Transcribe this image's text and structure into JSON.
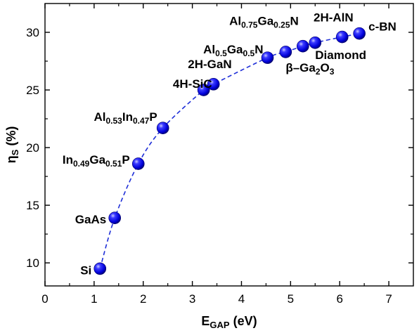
{
  "chart_data": {
    "type": "scatter",
    "xlabel": {
      "main": "E",
      "sub": "GAP",
      "tail": " (eV)"
    },
    "ylabel": {
      "main": "η",
      "sub": "S",
      "tail": " (%)"
    },
    "xlim": [
      0,
      7.5
    ],
    "ylim": [
      8,
      32.5
    ],
    "xticks": [
      0,
      1,
      2,
      3,
      4,
      5,
      6,
      7
    ],
    "yticks": [
      10,
      15,
      20,
      25,
      30
    ],
    "marker_color": "#1a1aff",
    "fit_line_color": "#1f2fd8",
    "fit_line_style": "dashed",
    "points": [
      {
        "x": 1.12,
        "y": 9.5,
        "label": [
          {
            "t": "Si"
          }
        ]
      },
      {
        "x": 1.42,
        "y": 13.9,
        "label": [
          {
            "t": "GaAs"
          }
        ]
      },
      {
        "x": 1.9,
        "y": 18.6,
        "label": [
          {
            "t": "In"
          },
          {
            "t": "0.49",
            "sub": true
          },
          {
            "t": "Ga"
          },
          {
            "t": "0.51",
            "sub": true
          },
          {
            "t": "P"
          }
        ]
      },
      {
        "x": 2.4,
        "y": 21.7,
        "label": [
          {
            "t": "Al"
          },
          {
            "t": "0.53",
            "sub": true
          },
          {
            "t": "In"
          },
          {
            "t": "0.47",
            "sub": true
          },
          {
            "t": "P"
          }
        ]
      },
      {
        "x": 3.23,
        "y": 25.0,
        "label": [
          {
            "t": "4H-SiC"
          }
        ]
      },
      {
        "x": 3.43,
        "y": 25.5,
        "label": [
          {
            "t": "2H-GaN"
          }
        ]
      },
      {
        "x": 4.53,
        "y": 27.8,
        "label": [
          {
            "t": "Al"
          },
          {
            "t": "0.5",
            "sub": true
          },
          {
            "t": "Ga"
          },
          {
            "t": "0.5",
            "sub": true
          },
          {
            "t": "N"
          }
        ]
      },
      {
        "x": 4.9,
        "y": 28.3,
        "label": [
          {
            "t": "β–Ga"
          },
          {
            "t": "2",
            "sub": true
          },
          {
            "t": "O"
          },
          {
            "t": "3",
            "sub": true
          }
        ]
      },
      {
        "x": 5.25,
        "y": 28.8,
        "label": [
          {
            "t": "Al"
          },
          {
            "t": "0.75",
            "sub": true
          },
          {
            "t": "Ga"
          },
          {
            "t": "0.25",
            "sub": true
          },
          {
            "t": "N"
          }
        ]
      },
      {
        "x": 5.5,
        "y": 29.1,
        "label": [
          {
            "t": "Diamond"
          }
        ]
      },
      {
        "x": 6.05,
        "y": 29.6,
        "label": [
          {
            "t": "2H-AlN"
          }
        ]
      },
      {
        "x": 6.4,
        "y": 29.9,
        "label": [
          {
            "t": "c-BN"
          }
        ]
      }
    ]
  }
}
